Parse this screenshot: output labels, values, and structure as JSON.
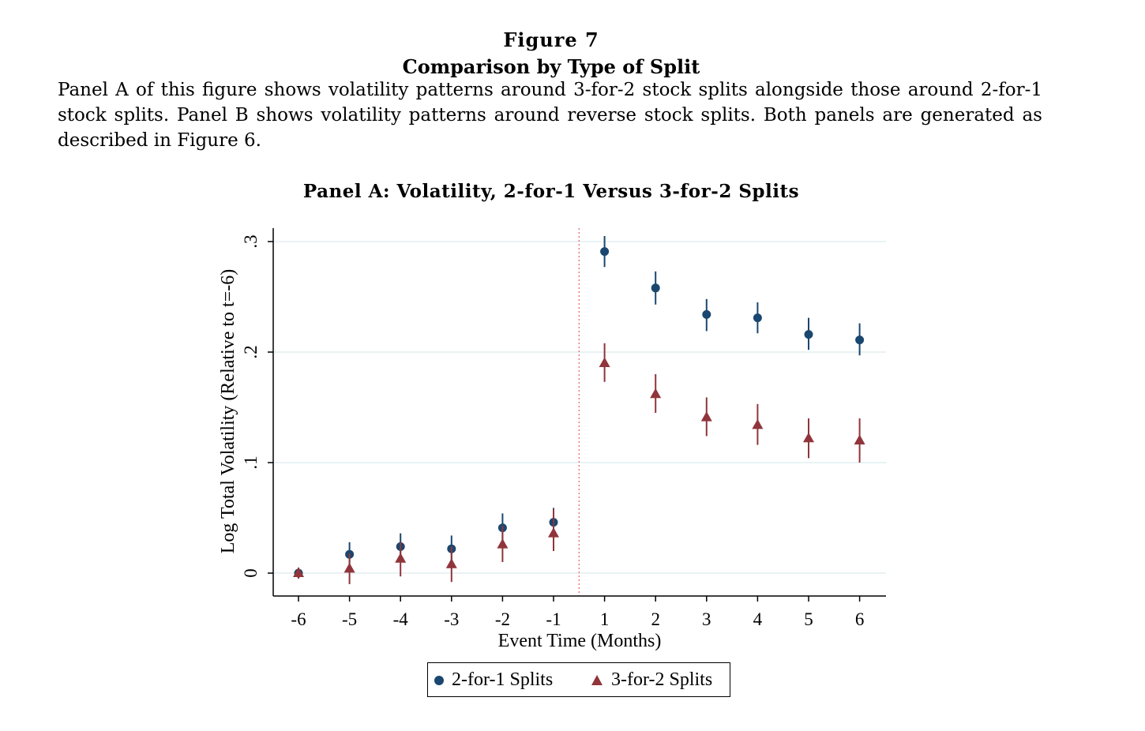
{
  "figure": {
    "label": "Figure 7",
    "title": "Comparison by Type of Split",
    "caption": "Panel A of this figure shows volatility patterns around 3-for-2 stock splits alongside those around 2-for-1 stock splits.  Panel B shows volatility patterns around reverse stock splits.  Both panels are generated as described in Figure 6."
  },
  "chart_data": {
    "type": "scatter",
    "title": "Panel A: Volatility, 2-for-1 Versus 3-for-2 Splits",
    "xlabel": "Event Time (Months)",
    "ylabel": "Log Total Volatility (Relative to t=-6)",
    "categories": [
      "-6",
      "-5",
      "-4",
      "-3",
      "-2",
      "-1",
      "1",
      "2",
      "3",
      "4",
      "5",
      "6"
    ],
    "ylim": [
      -0.02,
      0.315
    ],
    "yticks": [
      0,
      0.1,
      0.2,
      0.3
    ],
    "ytick_labels": [
      "0",
      ".1",
      ".2",
      ".3"
    ],
    "event_line": "between -1 and 1",
    "grid": true,
    "legend_position": "bottom-center",
    "series": [
      {
        "name": "2-for-1 Splits",
        "marker": "circle",
        "color": "#1a476f",
        "values": [
          0.0,
          0.017,
          0.024,
          0.022,
          0.041,
          0.046,
          0.291,
          0.258,
          0.234,
          0.231,
          0.216,
          0.211
        ],
        "ci_low": [
          -0.005,
          0.006,
          0.013,
          0.01,
          0.028,
          0.034,
          0.277,
          0.243,
          0.219,
          0.217,
          0.202,
          0.197
        ],
        "ci_high": [
          0.005,
          0.028,
          0.036,
          0.034,
          0.054,
          0.059,
          0.305,
          0.273,
          0.248,
          0.245,
          0.231,
          0.226
        ]
      },
      {
        "name": "3-for-2 Splits",
        "marker": "triangle",
        "color": "#90353b",
        "values": [
          0.0,
          0.004,
          0.013,
          0.008,
          0.026,
          0.036,
          0.19,
          0.162,
          0.141,
          0.134,
          0.122,
          0.12
        ],
        "ci_low": [
          -0.005,
          -0.01,
          -0.003,
          -0.008,
          0.01,
          0.02,
          0.173,
          0.145,
          0.124,
          0.116,
          0.104,
          0.1
        ],
        "ci_high": [
          0.005,
          0.018,
          0.028,
          0.024,
          0.043,
          0.058,
          0.208,
          0.18,
          0.159,
          0.153,
          0.14,
          0.14
        ]
      }
    ]
  }
}
